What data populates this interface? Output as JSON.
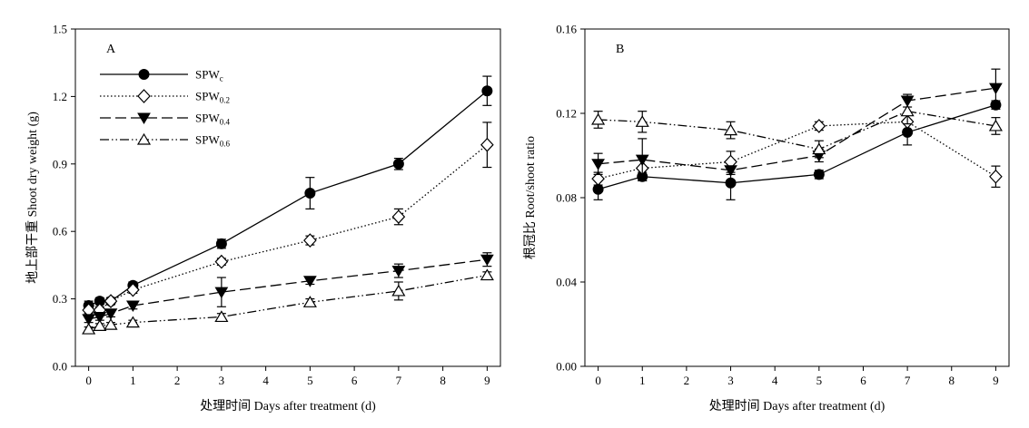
{
  "chart_data": [
    {
      "type": "line",
      "panel_label": "A",
      "xlabel": "处理时间 Days after treatment (d)",
      "ylabel": "地上部干重 Shoot dry weight (g)",
      "xlim": [
        -0.3,
        9.3
      ],
      "ylim": [
        0,
        1.5
      ],
      "x_ticks": [
        0,
        1,
        2,
        3,
        4,
        5,
        6,
        7,
        8,
        9
      ],
      "y_ticks": [
        0.0,
        0.3,
        0.6,
        0.9,
        1.2,
        1.5
      ],
      "y_tick_labels": [
        "0.0",
        "0.3",
        "0.6",
        "0.9",
        "1.2",
        "1.5"
      ],
      "legend_position": "top-left",
      "series": [
        {
          "name": "SPWc",
          "name_main": "SPW",
          "name_sub": "c",
          "marker": "filled-circle",
          "line": "solid",
          "x": [
            0,
            0.25,
            0.5,
            1,
            3,
            5,
            7,
            9
          ],
          "y": [
            0.27,
            0.29,
            0.29,
            0.36,
            0.545,
            0.77,
            0.9,
            1.225
          ],
          "err": [
            0.02,
            0.015,
            0.015,
            0.015,
            0.02,
            0.07,
            0.025,
            0.065
          ]
        },
        {
          "name": "SPW0.2",
          "name_main": "SPW",
          "name_sub": "0.2",
          "marker": "open-diamond",
          "line": "dotted",
          "x": [
            0,
            0.25,
            0.5,
            1,
            3,
            5,
            7,
            9
          ],
          "y": [
            0.25,
            0.25,
            0.29,
            0.34,
            0.465,
            0.56,
            0.665,
            0.985
          ],
          "err": [
            0.015,
            0.015,
            0.015,
            0.015,
            0.015,
            0.02,
            0.035,
            0.1
          ]
        },
        {
          "name": "SPW0.4",
          "name_main": "SPW",
          "name_sub": "0.4",
          "marker": "filled-triangle-down",
          "line": "dashed",
          "x": [
            0,
            0.25,
            0.5,
            1,
            3,
            5,
            7,
            9
          ],
          "y": [
            0.21,
            0.22,
            0.235,
            0.27,
            0.33,
            0.38,
            0.425,
            0.475
          ],
          "err": [
            0.015,
            0.015,
            0.015,
            0.015,
            0.065,
            0.015,
            0.03,
            0.03
          ]
        },
        {
          "name": "SPW0.6",
          "name_main": "SPW",
          "name_sub": "0.6",
          "marker": "open-triangle-up",
          "line": "dash-dot-dot",
          "x": [
            0,
            0.25,
            0.5,
            1,
            3,
            5,
            7,
            9
          ],
          "y": [
            0.165,
            0.18,
            0.185,
            0.195,
            0.22,
            0.285,
            0.335,
            0.405
          ],
          "err": [
            0.01,
            0.01,
            0.01,
            0.01,
            0.015,
            0.015,
            0.04,
            0.015
          ]
        }
      ]
    },
    {
      "type": "line",
      "panel_label": "B",
      "xlabel": "处理时间 Days after treatment (d)",
      "ylabel": "根冠比 Root/shoot ratio",
      "xlim": [
        -0.3,
        9.3
      ],
      "ylim": [
        0,
        0.16
      ],
      "x_ticks": [
        0,
        1,
        2,
        3,
        4,
        5,
        6,
        7,
        8,
        9
      ],
      "y_ticks": [
        0.0,
        0.04,
        0.08,
        0.12,
        0.16
      ],
      "y_tick_labels": [
        "0.00",
        "0.04",
        "0.08",
        "0.12",
        "0.16"
      ],
      "series": [
        {
          "name": "SPWc",
          "marker": "filled-circle",
          "line": "solid",
          "x": [
            0,
            1,
            3,
            5,
            7,
            9
          ],
          "y": [
            0.084,
            0.09,
            0.087,
            0.091,
            0.111,
            0.124
          ],
          "err": [
            0.005,
            0.002,
            0.008,
            0.002,
            0.006,
            0.002
          ]
        },
        {
          "name": "SPW0.2",
          "marker": "open-diamond",
          "line": "dotted",
          "x": [
            0,
            1,
            3,
            5,
            7,
            9
          ],
          "y": [
            0.089,
            0.094,
            0.097,
            0.114,
            0.116,
            0.09
          ],
          "err": [
            0.003,
            0.005,
            0.005,
            0.002,
            0.004,
            0.005
          ]
        },
        {
          "name": "SPW0.4",
          "marker": "filled-triangle-down",
          "line": "dashed",
          "x": [
            0,
            1,
            3,
            5,
            7,
            9
          ],
          "y": [
            0.096,
            0.098,
            0.093,
            0.1,
            0.126,
            0.132
          ],
          "err": [
            0.005,
            0.01,
            0.002,
            0.003,
            0.003,
            0.009
          ]
        },
        {
          "name": "SPW0.6",
          "marker": "open-triangle-up",
          "line": "dash-dot-dot",
          "x": [
            0,
            1,
            3,
            5,
            7,
            9
          ],
          "y": [
            0.117,
            0.116,
            0.112,
            0.103,
            0.121,
            0.114
          ],
          "err": [
            0.004,
            0.005,
            0.004,
            0.004,
            0.006,
            0.004
          ]
        }
      ]
    }
  ]
}
